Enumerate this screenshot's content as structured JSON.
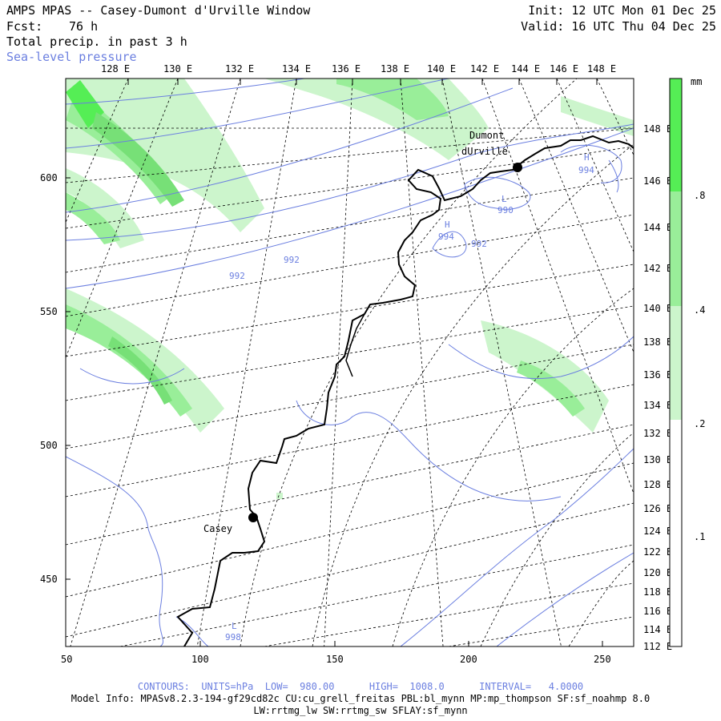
{
  "header": {
    "title": "AMPS MPAS -- Casey-Dumont d'Urville Window",
    "fcst_label": "Fcst:",
    "fcst_value": "76 h",
    "field": "Total precip. in past 3 h",
    "overlay": "Sea-level pressure",
    "init": "Init: 12 UTC Mon 01 Dec 25",
    "valid": "Valid: 16 UTC Thu 04 Dec 25"
  },
  "map": {
    "top_lon_labels": [
      "128 E",
      "130 E",
      "132 E",
      "134 E",
      "136 E",
      "138 E",
      "140 E",
      "142 E",
      "144 E",
      "146 E",
      "148 E"
    ],
    "right_lon_labels": [
      "148 E",
      "146 E",
      "144 E",
      "142 E",
      "140 E",
      "138 E",
      "136 E",
      "134 E",
      "132 E",
      "130 E",
      "128 E",
      "126 E",
      "124 E",
      "122 E",
      "120 E",
      "118 E",
      "116 E",
      "114 E",
      "112 E"
    ],
    "left_y_labels": [
      "600",
      "550",
      "500",
      "450"
    ],
    "bottom_x_labels": [
      "50",
      "100",
      "150",
      "200",
      "250"
    ],
    "stations": [
      "Dumont",
      "dUrville",
      "Casey"
    ],
    "pressure_labels": [
      "992",
      "992",
      "992",
      "994",
      "994",
      "990",
      "998"
    ],
    "hl_markers": [
      "H",
      "H",
      "L",
      "L"
    ]
  },
  "colorbar": {
    "unit": "mm",
    "ticks": [
      ".8",
      ".4",
      ".2",
      ".1"
    ],
    "colors": [
      "#55ee55",
      "#99ee99",
      "#ccf5cc",
      "#ffffff"
    ]
  },
  "footer": {
    "contours": "CONTOURS:  UNITS=hPa  LOW=  980.00      HIGH=  1008.0      INTERVAL=   4.0000",
    "model_info": "Model Info: MPASv8.2.3-194-gf29cd82c CU:cu_grell_freitas PBL:bl_mynn MP:mp_thompson SF:sf_noahmp 8.0",
    "model_info2": "LW:rrtmg_lw SW:rrtmg_sw SFLAY:sf_mynn"
  }
}
